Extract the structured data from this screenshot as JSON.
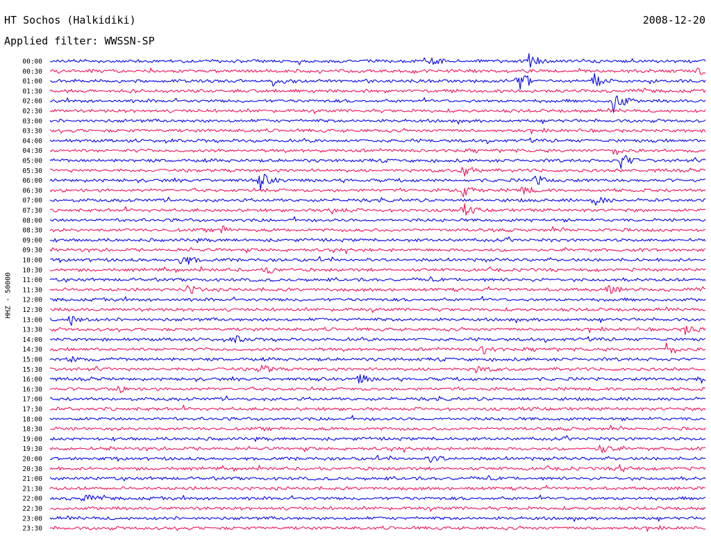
{
  "header": {
    "station": "HT Sochos (Halkidiki)",
    "filter": "Applied filter: WWSSN-SP",
    "date": "2008-12-20"
  },
  "chart_data": {
    "type": "line",
    "title": "HT Sochos (Halkidiki)",
    "ylabel": "HHZ - 50000",
    "xlabel": "",
    "date": "2008-12-20",
    "categories": [
      "00:00",
      "00:30",
      "01:00",
      "01:30",
      "02:00",
      "02:30",
      "03:00",
      "03:30",
      "04:00",
      "04:30",
      "05:00",
      "05:30",
      "06:00",
      "06:30",
      "07:00",
      "07:30",
      "08:00",
      "08:30",
      "09:00",
      "09:30",
      "10:00",
      "10:30",
      "11:00",
      "11:30",
      "12:00",
      "12:30",
      "13:00",
      "13:30",
      "14:00",
      "14:30",
      "15:00",
      "15:30",
      "16:00",
      "16:30",
      "17:00",
      "17:30",
      "18:00",
      "18:30",
      "19:00",
      "19:30",
      "20:00",
      "20:30",
      "21:00",
      "21:30",
      "22:00",
      "22:30",
      "23:00",
      "23:30"
    ],
    "line_colors": [
      "#0000ee",
      "#ee1155"
    ],
    "events": [
      {
        "row": 0,
        "at": 0.73,
        "amp": 0.7
      },
      {
        "row": 0,
        "at": 0.58,
        "amp": 0.35
      },
      {
        "row": 1,
        "at": 0.99,
        "amp": 0.5
      },
      {
        "row": 2,
        "at": 0.71,
        "amp": 1.7
      },
      {
        "row": 2,
        "at": 0.83,
        "amp": 0.8
      },
      {
        "row": 2,
        "at": 0.34,
        "amp": 0.4
      },
      {
        "row": 4,
        "at": 0.86,
        "amp": 1.3
      },
      {
        "row": 9,
        "at": 0.86,
        "amp": 0.4
      },
      {
        "row": 10,
        "at": 0.87,
        "amp": 0.9
      },
      {
        "row": 11,
        "at": 0.63,
        "amp": 0.7
      },
      {
        "row": 12,
        "at": 0.32,
        "amp": 0.9
      },
      {
        "row": 12,
        "at": 0.74,
        "amp": 0.5
      },
      {
        "row": 13,
        "at": 0.63,
        "amp": 0.6
      },
      {
        "row": 13,
        "at": 0.72,
        "amp": 0.5
      },
      {
        "row": 14,
        "at": 0.83,
        "amp": 0.6
      },
      {
        "row": 15,
        "at": 0.63,
        "amp": 0.6
      },
      {
        "row": 15,
        "at": 0.43,
        "amp": 0.4
      },
      {
        "row": 17,
        "at": 0.26,
        "amp": 0.4
      },
      {
        "row": 20,
        "at": 0.2,
        "amp": 0.8
      },
      {
        "row": 21,
        "at": 0.33,
        "amp": 0.4
      },
      {
        "row": 23,
        "at": 0.21,
        "amp": 0.5
      },
      {
        "row": 23,
        "at": 0.85,
        "amp": 0.5
      },
      {
        "row": 26,
        "at": 0.03,
        "amp": 0.6
      },
      {
        "row": 27,
        "at": 0.97,
        "amp": 0.6
      },
      {
        "row": 28,
        "at": 0.28,
        "amp": 0.4
      },
      {
        "row": 29,
        "at": 0.66,
        "amp": 0.5
      },
      {
        "row": 29,
        "at": 0.94,
        "amp": 0.7
      },
      {
        "row": 30,
        "at": 0.03,
        "amp": 0.4
      },
      {
        "row": 31,
        "at": 0.32,
        "amp": 0.6
      },
      {
        "row": 31,
        "at": 0.65,
        "amp": 0.4
      },
      {
        "row": 32,
        "at": 0.47,
        "amp": 0.6
      },
      {
        "row": 32,
        "at": 0.99,
        "amp": 0.5
      },
      {
        "row": 33,
        "at": 0.1,
        "amp": 0.4
      },
      {
        "row": 39,
        "at": 0.84,
        "amp": 0.6
      },
      {
        "row": 40,
        "at": 0.58,
        "amp": 0.5
      },
      {
        "row": 41,
        "at": 0.87,
        "amp": 0.4
      },
      {
        "row": 44,
        "at": 0.05,
        "amp": 0.4
      }
    ]
  }
}
